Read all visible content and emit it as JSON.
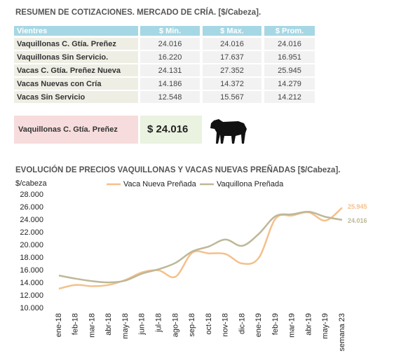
{
  "header": {
    "title": "RESUMEN DE COTIZACIONES. MERCADO DE CRÍA. [$/Cabeza]."
  },
  "table": {
    "columns": [
      "Vientres",
      "$ Min.",
      "$ Max.",
      "$ Prom."
    ],
    "rows": [
      [
        "Vaquillonas C. Gtía. Preñez",
        "24.016",
        "24.016",
        "24.016"
      ],
      [
        "Vaquillonas Sin Servicio.",
        "16.220",
        "17.637",
        "16.951"
      ],
      [
        "Vacas C. Gtía. Preñez Nueva",
        "24.131",
        "27.352",
        "25.945"
      ],
      [
        "Vacas Nuevas con Cría",
        "14.186",
        "14.372",
        "14.279"
      ],
      [
        "Vacas Sin Servicio",
        "12.548",
        "15.567",
        "14.212"
      ]
    ]
  },
  "highlight": {
    "label": "Vaquillonas C. Gtía. Preñez",
    "value": "$ 24.016"
  },
  "chart_data": {
    "type": "line",
    "title": "EVOLUCIÓN DE PRECIOS VAQUILLONAS Y VACAS NUEVAS PREÑADAS [$/Cabeza].",
    "y_label": "$/cabeza",
    "categories": [
      "ene-18",
      "feb-18",
      "mar-18",
      "abr-18",
      "may-18",
      "jun-18",
      "jul-18",
      "ago-18",
      "sep-18",
      "oct-18",
      "nov-18",
      "dic-18",
      "ene-19",
      "feb-19",
      "mar-19",
      "abr-19",
      "may-19",
      "semana 23"
    ],
    "series": [
      {
        "name": "Vaca Nueva Preñada",
        "color": "#f5c08c",
        "values": [
          13100,
          13700,
          13500,
          13700,
          14500,
          15700,
          16000,
          15000,
          18800,
          18700,
          18600,
          17100,
          18000,
          24200,
          24700,
          25200,
          23900,
          25945
        ],
        "value_labels": [
          null,
          null,
          null,
          null,
          null,
          null,
          null,
          null,
          null,
          null,
          null,
          null,
          null,
          null,
          null,
          null,
          null,
          "25.945"
        ]
      },
      {
        "name": "Vaquillona Preñada",
        "color": "#bdb897",
        "values": [
          15200,
          14700,
          14300,
          14100,
          14400,
          15500,
          16200,
          17200,
          19000,
          19800,
          20900,
          19900,
          21800,
          24600,
          24900,
          25300,
          24500,
          24016
        ],
        "value_labels": [
          null,
          null,
          null,
          null,
          null,
          null,
          null,
          null,
          null,
          null,
          null,
          null,
          null,
          null,
          null,
          null,
          null,
          "24.016"
        ]
      }
    ],
    "ylim": [
      10000,
      28000
    ],
    "yticks": [
      {
        "value": 10000,
        "label": "10.000"
      },
      {
        "value": 12000,
        "label": "12.000"
      },
      {
        "value": 14000,
        "label": "14.000"
      },
      {
        "value": 16000,
        "label": "16.000"
      },
      {
        "value": 18000,
        "label": "18.000"
      },
      {
        "value": 20000,
        "label": "20.000"
      },
      {
        "value": 22000,
        "label": "22.000"
      },
      {
        "value": 24000,
        "label": "24.000"
      },
      {
        "value": 26000,
        "label": "26.000"
      },
      {
        "value": 28000,
        "label": "28.000"
      }
    ],
    "grid": false,
    "legend": "top"
  }
}
